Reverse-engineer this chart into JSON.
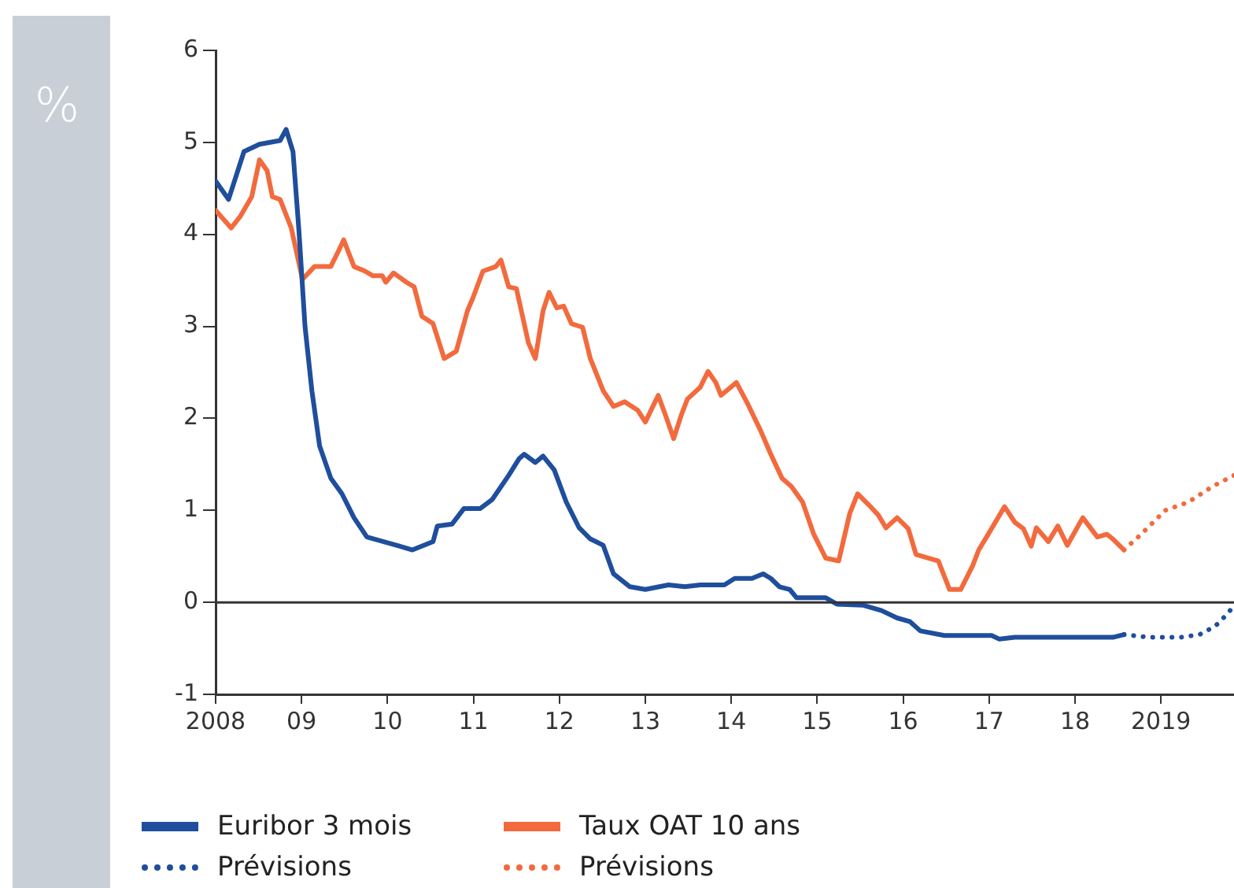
{
  "chart_data": {
    "type": "line",
    "ylabel": "%",
    "legend": "bottom",
    "marker": "none",
    "grid": false,
    "xlim": [
      2008,
      2019.85
    ],
    "xticks": [
      {
        "value": 2008,
        "label": "2008"
      },
      {
        "value": 2009,
        "label": "09"
      },
      {
        "value": 2010,
        "label": "10"
      },
      {
        "value": 2011,
        "label": "11"
      },
      {
        "value": 2012,
        "label": "12"
      },
      {
        "value": 2013,
        "label": "13"
      },
      {
        "value": 2014,
        "label": "14"
      },
      {
        "value": 2015,
        "label": "15"
      },
      {
        "value": 2016,
        "label": "16"
      },
      {
        "value": 2017,
        "label": "17"
      },
      {
        "value": 2018,
        "label": "18"
      },
      {
        "value": 2019,
        "label": "2019"
      }
    ],
    "ylim": [
      -1,
      6
    ],
    "yticks": [
      -1,
      0,
      1,
      2,
      3,
      4,
      5,
      6
    ],
    "ref_lines": [
      {
        "axis": "y",
        "value": 0,
        "color": "#333333"
      }
    ],
    "series": [
      {
        "name": "Euribor 3 mois",
        "color": "#1f4e9c",
        "line_style": "solid",
        "x": [
          2008.0,
          2008.15,
          2008.33,
          2008.51,
          2008.75,
          2008.82,
          2008.9,
          2008.97,
          2009.04,
          2009.12,
          2009.21,
          2009.34,
          2009.47,
          2009.61,
          2009.76,
          2010.03,
          2010.29,
          2010.53,
          2010.58,
          2010.75,
          2010.89,
          2011.08,
          2011.22,
          2011.41,
          2011.53,
          2011.59,
          2011.72,
          2011.81,
          2011.94,
          2012.08,
          2012.23,
          2012.36,
          2012.51,
          2012.63,
          2012.82,
          2013.0,
          2013.27,
          2013.46,
          2013.64,
          2013.92,
          2014.04,
          2014.24,
          2014.37,
          2014.46,
          2014.56,
          2014.68,
          2014.76,
          2015.1,
          2015.23,
          2015.53,
          2015.75,
          2015.93,
          2016.08,
          2016.2,
          2016.48,
          2017.03,
          2017.12,
          2017.3,
          2018.44,
          2018.57
        ],
        "values": [
          4.58,
          4.38,
          4.9,
          4.98,
          5.02,
          5.14,
          4.9,
          4.03,
          3.0,
          2.3,
          1.7,
          1.35,
          1.18,
          0.92,
          0.71,
          0.64,
          0.57,
          0.66,
          0.83,
          0.85,
          1.02,
          1.02,
          1.12,
          1.38,
          1.56,
          1.61,
          1.52,
          1.59,
          1.44,
          1.09,
          0.81,
          0.69,
          0.62,
          0.31,
          0.17,
          0.14,
          0.19,
          0.17,
          0.19,
          0.19,
          0.26,
          0.26,
          0.31,
          0.26,
          0.17,
          0.14,
          0.05,
          0.05,
          -0.02,
          -0.03,
          -0.09,
          -0.17,
          -0.21,
          -0.31,
          -0.36,
          -0.36,
          -0.4,
          -0.38,
          -0.38,
          -0.35
        ]
      },
      {
        "name": "Taux OAT 10 ans",
        "color": "#f26a3d",
        "line_style": "solid",
        "x": [
          2008.0,
          2008.18,
          2008.29,
          2008.42,
          2008.51,
          2008.6,
          2008.66,
          2008.75,
          2008.88,
          2009.01,
          2009.15,
          2009.34,
          2009.43,
          2009.49,
          2009.61,
          2009.74,
          2009.83,
          2009.94,
          2009.98,
          2010.07,
          2010.22,
          2010.31,
          2010.4,
          2010.53,
          2010.66,
          2010.8,
          2010.93,
          2010.99,
          2011.11,
          2011.26,
          2011.32,
          2011.41,
          2011.5,
          2011.64,
          2011.72,
          2011.81,
          2011.88,
          2011.97,
          2012.05,
          2012.14,
          2012.27,
          2012.36,
          2012.51,
          2012.63,
          2012.76,
          2012.91,
          2013.0,
          2013.15,
          2013.24,
          2013.33,
          2013.42,
          2013.49,
          2013.64,
          2013.73,
          2013.82,
          2013.88,
          2014.06,
          2014.19,
          2014.34,
          2014.46,
          2014.59,
          2014.7,
          2014.83,
          2014.96,
          2015.1,
          2015.25,
          2015.38,
          2015.47,
          2015.6,
          2015.71,
          2015.8,
          2015.93,
          2016.06,
          2016.15,
          2016.3,
          2016.41,
          2016.54,
          2016.67,
          2016.81,
          2016.88,
          2016.99,
          2017.18,
          2017.3,
          2017.4,
          2017.49,
          2017.55,
          2017.69,
          2017.8,
          2017.91,
          2018.09,
          2018.26,
          2018.37,
          2018.44,
          2018.57
        ],
        "values": [
          4.26,
          4.07,
          4.2,
          4.41,
          4.81,
          4.69,
          4.41,
          4.38,
          4.07,
          3.51,
          3.65,
          3.65,
          3.82,
          3.94,
          3.65,
          3.6,
          3.55,
          3.55,
          3.48,
          3.58,
          3.48,
          3.43,
          3.11,
          3.03,
          2.65,
          2.73,
          3.17,
          3.3,
          3.6,
          3.65,
          3.72,
          3.43,
          3.41,
          2.82,
          2.65,
          3.17,
          3.37,
          3.2,
          3.22,
          3.03,
          2.99,
          2.65,
          2.3,
          2.13,
          2.18,
          2.09,
          1.96,
          2.25,
          2.02,
          1.78,
          2.04,
          2.21,
          2.34,
          2.51,
          2.39,
          2.25,
          2.39,
          2.16,
          1.87,
          1.61,
          1.35,
          1.26,
          1.09,
          0.74,
          0.48,
          0.45,
          0.97,
          1.18,
          1.06,
          0.95,
          0.81,
          0.92,
          0.8,
          0.52,
          0.48,
          0.45,
          0.14,
          0.14,
          0.4,
          0.57,
          0.74,
          1.04,
          0.87,
          0.8,
          0.61,
          0.81,
          0.66,
          0.83,
          0.62,
          0.92,
          0.71,
          0.74,
          0.69,
          0.57
        ]
      },
      {
        "name": "Prévisions",
        "color": "#1f4e9c",
        "line_style": "dotted",
        "x": [
          2018.57,
          2018.86,
          2019.23,
          2019.45,
          2019.63,
          2019.78,
          2019.85
        ],
        "values": [
          -0.35,
          -0.38,
          -0.38,
          -0.35,
          -0.26,
          -0.12,
          -0.03
        ]
      },
      {
        "name": "Prévisions",
        "color": "#f26a3d",
        "line_style": "dotted",
        "x": [
          2018.57,
          2018.77,
          2019.05,
          2019.32,
          2019.6,
          2019.85
        ],
        "values": [
          0.57,
          0.74,
          1.0,
          1.09,
          1.26,
          1.38
        ]
      }
    ]
  }
}
